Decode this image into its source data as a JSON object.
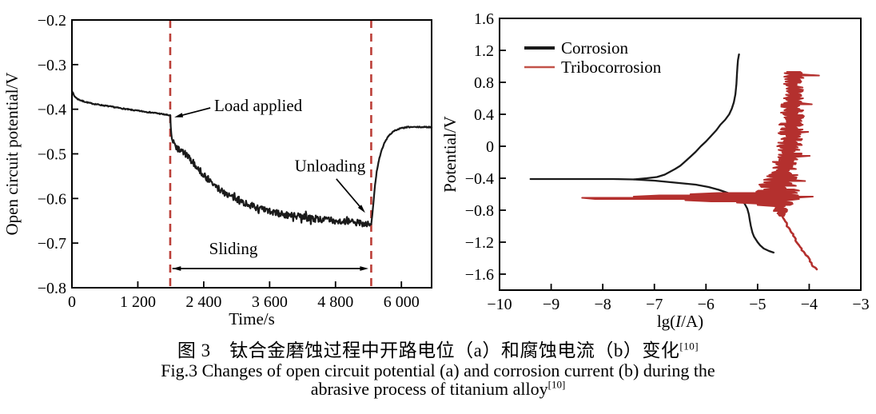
{
  "page": {
    "background": "#ffffff"
  },
  "colors": {
    "black_series": "#1a1a1a",
    "red_series": "#b4302e",
    "dashed_line": "#bb3f38",
    "legend_red": "#c25249",
    "axis": "#000000"
  },
  "caption": {
    "line1_zh": "图 3　钛合金磨蚀过程中开路电位（a）和腐蚀电流（b）变化",
    "line1_sup": "[10]",
    "line2_en": "Fig.3 Changes of open circuit potential (a) and corrosion current (b) during the",
    "line3_en": "abrasive process of titanium alloy",
    "line3_sup": "[10]"
  },
  "chart_data": [
    {
      "type": "line",
      "panel": "a",
      "xlabel": "Time/s",
      "ylabel": "Open circuit potential/V",
      "xlim": [
        0,
        6550
      ],
      "ylim": [
        -0.8,
        -0.2
      ],
      "grid": false,
      "xticks": [
        0,
        1200,
        2400,
        3600,
        4800,
        6000
      ],
      "xtick_labels": [
        "0",
        "1 200",
        "2 400",
        "3 600",
        "4 800",
        "6 000"
      ],
      "yticks": [
        -0.8,
        -0.7,
        -0.6,
        -0.5,
        -0.4,
        -0.3,
        -0.2
      ],
      "ytick_labels": [
        "−0.8",
        "−0.7",
        "−0.6",
        "−0.5",
        "−0.4",
        "−0.3",
        "−0.2"
      ],
      "vlines": [
        1790,
        5450
      ],
      "series": [
        {
          "name": "open-circuit-potential",
          "type": "ocp",
          "color": "#1a1a1a",
          "width": 2.2,
          "noise": {
            "t0": 1835,
            "t1": 5440,
            "amp": 0.0075,
            "base_amp": 0.0012,
            "seed": 7,
            "step": 10
          },
          "points": [
            [
              0,
              -0.358
            ],
            [
              40,
              -0.37
            ],
            [
              100,
              -0.377
            ],
            [
              200,
              -0.382
            ],
            [
              350,
              -0.387
            ],
            [
              550,
              -0.391
            ],
            [
              800,
              -0.396
            ],
            [
              1050,
              -0.401
            ],
            [
              1300,
              -0.405
            ],
            [
              1550,
              -0.409
            ],
            [
              1790,
              -0.414
            ],
            [
              1800,
              -0.44
            ],
            [
              1815,
              -0.465
            ],
            [
              1840,
              -0.474
            ],
            [
              1880,
              -0.481
            ],
            [
              1940,
              -0.49
            ],
            [
              2040,
              -0.497
            ],
            [
              2150,
              -0.512
            ],
            [
              2260,
              -0.527
            ],
            [
              2380,
              -0.545
            ],
            [
              2500,
              -0.56
            ],
            [
              2620,
              -0.574
            ],
            [
              2760,
              -0.585
            ],
            [
              2900,
              -0.596
            ],
            [
              3050,
              -0.605
            ],
            [
              3200,
              -0.613
            ],
            [
              3350,
              -0.62
            ],
            [
              3500,
              -0.626
            ],
            [
              3700,
              -0.632
            ],
            [
              3900,
              -0.637
            ],
            [
              4150,
              -0.641
            ],
            [
              4400,
              -0.645
            ],
            [
              4650,
              -0.648
            ],
            [
              4900,
              -0.651
            ],
            [
              5150,
              -0.654
            ],
            [
              5350,
              -0.656
            ],
            [
              5450,
              -0.659
            ],
            [
              5470,
              -0.638
            ],
            [
              5495,
              -0.603
            ],
            [
              5520,
              -0.57
            ],
            [
              5550,
              -0.54
            ],
            [
              5590,
              -0.514
            ],
            [
              5640,
              -0.492
            ],
            [
              5700,
              -0.473
            ],
            [
              5770,
              -0.459
            ],
            [
              5860,
              -0.449
            ],
            [
              5980,
              -0.443
            ],
            [
              6120,
              -0.44
            ],
            [
              6550,
              -0.44
            ]
          ]
        }
      ],
      "annotations": [
        {
          "name": "load-applied",
          "text": "Load applied",
          "tx": 2590,
          "ty": -0.392,
          "anchor": "start",
          "arrow": [
            2520,
            -0.397,
            1865,
            -0.418
          ]
        },
        {
          "name": "unloading",
          "text": "Unloading",
          "tx": 4700,
          "ty": -0.527,
          "anchor": "middle",
          "arrow": [
            4815,
            -0.556,
            5340,
            -0.632
          ]
        },
        {
          "name": "sliding",
          "text": "Sliding",
          "tx": 2940,
          "ty": -0.712,
          "anchor": "middle",
          "span": [
            1830,
            5400,
            -0.757
          ]
        }
      ]
    },
    {
      "type": "line",
      "panel": "b",
      "xlabel_parts": [
        "lg(",
        "I",
        "/A)"
      ],
      "ylabel": "Potential/V",
      "xlim": [
        -10,
        -3
      ],
      "ylim": [
        -1.8,
        1.6
      ],
      "grid": false,
      "xticks": [
        -10,
        -9,
        -8,
        -7,
        -6,
        -5,
        -4,
        -3
      ],
      "xtick_labels": [
        "−10",
        "−9",
        "−8",
        "−7",
        "−6",
        "−5",
        "−4",
        "−3"
      ],
      "yticks": [
        1.6,
        1.2,
        0.8,
        0.4,
        0,
        -0.4,
        -0.8,
        -1.2,
        -1.6
      ],
      "ytick_labels": [
        "1.6",
        "1.2",
        "0.8",
        "0.4",
        "0",
        "−0.4",
        "−0.8",
        "−1.2",
        "−1.6"
      ],
      "legend": [
        {
          "label": "Corrosion",
          "color": "#1a1a1a",
          "lw": 4
        },
        {
          "label": "Tribocorrosion",
          "color": "#c25249",
          "lw": 2.5
        }
      ],
      "series": [
        {
          "name": "corrosion-anodic",
          "type": "path",
          "color": "#1a1a1a",
          "width": 2.3,
          "points": [
            [
              -9.4,
              -0.41
            ],
            [
              -8.5,
              -0.41
            ],
            [
              -7.8,
              -0.41
            ],
            [
              -7.4,
              -0.415
            ],
            [
              -7.15,
              -0.4
            ],
            [
              -6.95,
              -0.385
            ],
            [
              -6.8,
              -0.355
            ],
            [
              -6.7,
              -0.32
            ],
            [
              -6.6,
              -0.285
            ],
            [
              -6.5,
              -0.245
            ],
            [
              -6.42,
              -0.2
            ],
            [
              -6.3,
              -0.13
            ],
            [
              -6.2,
              -0.07
            ],
            [
              -6.1,
              0.0
            ],
            [
              -6.0,
              0.06
            ],
            [
              -5.9,
              0.13
            ],
            [
              -5.8,
              0.2
            ],
            [
              -5.72,
              0.27
            ],
            [
              -5.63,
              0.33
            ],
            [
              -5.55,
              0.4
            ],
            [
              -5.5,
              0.47
            ],
            [
              -5.46,
              0.55
            ],
            [
              -5.43,
              0.65
            ],
            [
              -5.41,
              0.78
            ],
            [
              -5.4,
              0.9
            ],
            [
              -5.39,
              1.0
            ],
            [
              -5.38,
              1.08
            ],
            [
              -5.36,
              1.15
            ]
          ]
        },
        {
          "name": "corrosion-cathodic",
          "type": "path",
          "color": "#1a1a1a",
          "width": 2.3,
          "points": [
            [
              -7.4,
              -0.415
            ],
            [
              -7.0,
              -0.43
            ],
            [
              -6.6,
              -0.455
            ],
            [
              -6.2,
              -0.48
            ],
            [
              -5.95,
              -0.51
            ],
            [
              -5.75,
              -0.545
            ],
            [
              -5.55,
              -0.59
            ],
            [
              -5.4,
              -0.63
            ],
            [
              -5.3,
              -0.68
            ],
            [
              -5.25,
              -0.72
            ],
            [
              -5.2,
              -0.78
            ],
            [
              -5.17,
              -0.85
            ],
            [
              -5.15,
              -0.93
            ],
            [
              -5.13,
              -1.0
            ],
            [
              -5.1,
              -1.08
            ],
            [
              -5.07,
              -1.13
            ],
            [
              -5.0,
              -1.2
            ],
            [
              -4.95,
              -1.24
            ],
            [
              -4.88,
              -1.28
            ],
            [
              -4.78,
              -1.31
            ],
            [
              -4.69,
              -1.33
            ]
          ]
        },
        {
          "name": "tribocorrosion-band",
          "type": "band",
          "color": "#b4302e",
          "width": 2.1,
          "v_top": 0.93,
          "v_bottom": -0.88,
          "step": 0.015,
          "seed": 42,
          "center": [
            [
              -0.88,
              -4.52
            ],
            [
              -0.8,
              -4.55
            ],
            [
              -0.7,
              -4.6
            ],
            [
              -0.6,
              -4.62
            ],
            [
              -0.45,
              -4.55
            ],
            [
              -0.25,
              -4.45
            ],
            [
              0.0,
              -4.36
            ],
            [
              0.3,
              -4.32
            ],
            [
              0.6,
              -4.3
            ],
            [
              0.93,
              -4.28
            ]
          ],
          "amp": [
            [
              -0.88,
              0.08
            ],
            [
              -0.8,
              0.18
            ],
            [
              -0.72,
              0.35
            ],
            [
              -0.66,
              0.55
            ],
            [
              -0.58,
              0.5
            ],
            [
              -0.45,
              0.38
            ],
            [
              -0.2,
              0.3
            ],
            [
              0.2,
              0.26
            ],
            [
              0.6,
              0.24
            ],
            [
              0.93,
              0.22
            ]
          ],
          "excursions_left": [
            [
              -0.585,
              -5.75
            ],
            [
              -0.603,
              -6.3
            ],
            [
              -0.618,
              -6.9
            ],
            [
              -0.633,
              -7.4
            ],
            [
              -0.645,
              -7.9
            ],
            [
              -0.652,
              -8.4
            ],
            [
              -0.661,
              -8.15
            ],
            [
              -0.67,
              -7.3
            ],
            [
              -0.682,
              -6.4
            ],
            [
              -0.695,
              -5.9
            ],
            [
              -0.71,
              -5.4
            ],
            [
              -0.73,
              -5.0
            ]
          ],
          "excursions_right": [
            [
              0.88,
              -3.81
            ],
            [
              0.52,
              -3.95
            ],
            [
              0.18,
              -4.02
            ],
            [
              -0.12,
              -3.99
            ],
            [
              -0.44,
              -4.08
            ],
            [
              -0.63,
              -3.93
            ]
          ]
        },
        {
          "name": "tribocorrosion-tail",
          "type": "tail",
          "color": "#b4302e",
          "width": 2.6,
          "v_top": -0.88,
          "v_bottom": -1.55,
          "step": 0.02,
          "jitter": 0.025,
          "seed": 11,
          "points": [
            [
              -1.55,
              -3.87
            ],
            [
              -1.52,
              -3.89
            ],
            [
              -1.47,
              -3.95
            ],
            [
              -1.4,
              -4.02
            ],
            [
              -1.33,
              -4.1
            ],
            [
              -1.25,
              -4.18
            ],
            [
              -1.15,
              -4.28
            ],
            [
              -1.05,
              -4.37
            ],
            [
              -0.95,
              -4.46
            ],
            [
              -0.88,
              -4.52
            ]
          ]
        }
      ]
    }
  ]
}
